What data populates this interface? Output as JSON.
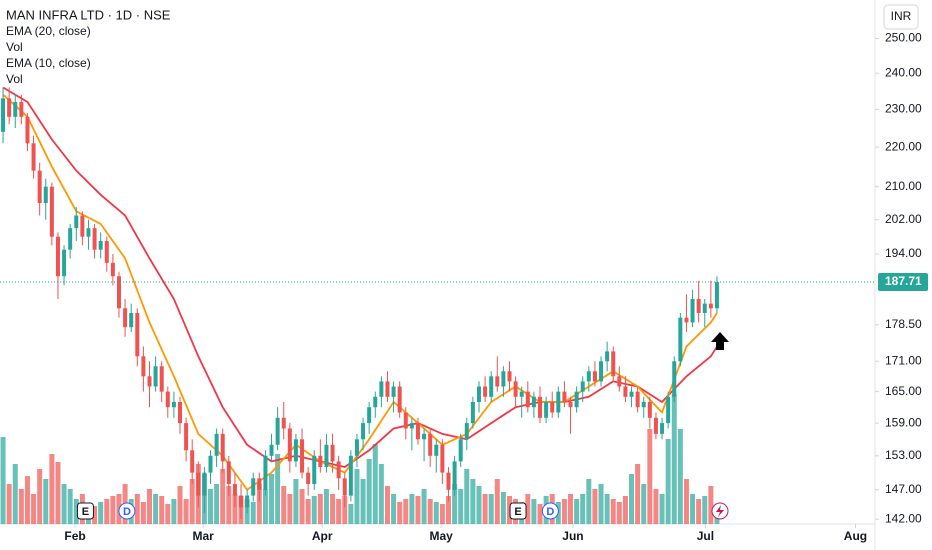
{
  "chart_data": {
    "type": "candlestick",
    "title": "MAN INFRA LTD · 1D · NSE",
    "legend": [
      "EMA (20, close)",
      "Vol",
      "EMA (10, close)",
      "Vol"
    ],
    "currency": "INR",
    "log_scale": true,
    "grid": false,
    "up_color": "#26a69a",
    "down_color": "#ef5350",
    "ylim": [
      141.2,
      261.6
    ],
    "yticks": [
      {
        "value": 250,
        "label": "250.00"
      },
      {
        "value": 240,
        "label": "240.00"
      },
      {
        "value": 230,
        "label": "230.00"
      },
      {
        "value": 220,
        "label": "220.00"
      },
      {
        "value": 210,
        "label": "210.00"
      },
      {
        "value": 202,
        "label": "202.00"
      },
      {
        "value": 194,
        "label": "194.00"
      },
      {
        "value": 178.5,
        "label": "178.50"
      },
      {
        "value": 171,
        "label": "171.00"
      },
      {
        "value": 165,
        "label": "165.00"
      },
      {
        "value": 159,
        "label": "159.00"
      },
      {
        "value": 153,
        "label": "153.00"
      },
      {
        "value": 147,
        "label": "147.00"
      },
      {
        "value": 142,
        "label": "142.00"
      }
    ],
    "xlim": [
      -0.5,
      142.9
    ],
    "xticks": [
      {
        "value": 11.8,
        "label": "Feb"
      },
      {
        "value": 32.8,
        "label": "Mar"
      },
      {
        "value": 52.3,
        "label": "Apr"
      },
      {
        "value": 71.8,
        "label": "May"
      },
      {
        "value": 93.4,
        "label": "Jun"
      },
      {
        "value": 115.1,
        "label": "Jul"
      },
      {
        "value": 139.7,
        "label": "Aug"
      }
    ],
    "last_price": 187.71,
    "ohlc": [
      [
        224,
        236,
        221,
        233
      ],
      [
        233,
        236,
        226,
        228
      ],
      [
        228,
        234,
        225,
        232
      ],
      [
        232,
        234,
        226,
        228
      ],
      [
        228,
        229,
        219,
        221
      ],
      [
        221,
        223,
        212,
        214
      ],
      [
        214,
        216,
        203,
        206
      ],
      [
        206,
        212,
        202,
        210
      ],
      [
        210,
        211,
        196,
        198
      ],
      [
        198,
        199,
        184,
        189
      ],
      [
        189,
        196,
        187,
        195
      ],
      [
        195,
        201,
        193,
        200
      ],
      [
        200,
        205,
        197,
        203
      ],
      [
        203,
        204,
        196,
        198
      ],
      [
        198,
        202,
        195,
        200
      ],
      [
        200,
        201,
        193,
        195
      ],
      [
        195,
        199,
        193,
        197
      ],
      [
        197,
        198,
        190,
        192
      ],
      [
        192,
        194,
        187,
        189
      ],
      [
        189,
        190,
        180,
        182
      ],
      [
        182,
        184,
        176,
        178
      ],
      [
        178,
        183,
        177,
        181
      ],
      [
        181,
        182,
        170,
        172
      ],
      [
        172,
        174,
        165,
        168
      ],
      [
        168,
        171,
        162,
        166
      ],
      [
        166,
        172,
        165,
        170
      ],
      [
        170,
        171,
        163,
        165
      ],
      [
        165,
        166,
        160,
        162
      ],
      [
        162,
        165,
        160,
        163
      ],
      [
        163,
        164,
        157,
        159
      ],
      [
        159,
        160,
        152,
        154
      ],
      [
        154,
        156,
        148,
        150
      ],
      [
        150,
        152,
        144,
        146
      ],
      [
        146,
        151,
        143,
        150
      ],
      [
        150,
        154,
        148,
        153
      ],
      [
        153,
        158,
        151,
        157
      ],
      [
        157,
        158,
        150,
        152
      ],
      [
        152,
        153,
        146,
        148
      ],
      [
        148,
        150,
        144,
        146
      ],
      [
        146,
        148,
        142,
        144
      ],
      [
        144,
        147,
        143,
        146
      ],
      [
        146,
        150,
        145,
        149
      ],
      [
        149,
        150,
        145,
        147
      ],
      [
        147,
        154,
        146,
        153
      ],
      [
        153,
        157,
        152,
        155
      ],
      [
        155,
        162,
        154,
        160
      ],
      [
        160,
        163,
        156,
        158
      ],
      [
        158,
        159,
        150,
        152
      ],
      [
        152,
        157,
        151,
        156
      ],
      [
        156,
        158,
        149,
        150
      ],
      [
        150,
        151,
        146,
        148
      ],
      [
        148,
        154,
        147,
        153
      ],
      [
        153,
        156,
        150,
        151
      ],
      [
        151,
        157,
        150,
        155
      ],
      [
        155,
        157,
        150,
        152
      ],
      [
        152,
        153,
        147,
        149
      ],
      [
        149,
        150,
        144,
        146
      ],
      [
        146,
        154,
        145,
        153
      ],
      [
        153,
        157,
        151,
        156
      ],
      [
        156,
        160,
        154,
        159
      ],
      [
        159,
        163,
        157,
        162
      ],
      [
        162,
        165,
        160,
        164
      ],
      [
        164,
        168,
        162,
        167
      ],
      [
        167,
        169,
        163,
        164
      ],
      [
        164,
        167,
        161,
        166
      ],
      [
        166,
        167,
        160,
        161
      ],
      [
        161,
        162,
        156,
        158
      ],
      [
        158,
        160,
        154,
        159
      ],
      [
        159,
        160,
        155,
        156
      ],
      [
        156,
        158,
        152,
        157
      ],
      [
        157,
        158,
        151,
        153
      ],
      [
        153,
        156,
        150,
        155
      ],
      [
        155,
        156,
        148,
        150
      ],
      [
        150,
        151,
        145,
        147
      ],
      [
        147,
        153,
        146,
        152
      ],
      [
        152,
        157,
        151,
        156
      ],
      [
        156,
        160,
        154,
        159
      ],
      [
        159,
        164,
        158,
        163
      ],
      [
        163,
        167,
        161,
        166
      ],
      [
        166,
        168,
        163,
        164
      ],
      [
        164,
        169,
        163,
        168
      ],
      [
        168,
        172,
        165,
        166
      ],
      [
        166,
        170,
        164,
        169
      ],
      [
        169,
        171,
        165,
        167
      ],
      [
        167,
        168,
        162,
        164
      ],
      [
        164,
        166,
        160,
        165
      ],
      [
        165,
        167,
        161,
        162
      ],
      [
        162,
        165,
        160,
        164
      ],
      [
        164,
        166,
        159,
        160
      ],
      [
        160,
        164,
        159,
        163
      ],
      [
        163,
        165,
        160,
        161
      ],
      [
        161,
        166,
        160,
        165
      ],
      [
        165,
        167,
        162,
        163
      ],
      [
        163,
        164,
        157,
        162
      ],
      [
        162,
        166,
        161,
        165
      ],
      [
        165,
        168,
        163,
        167
      ],
      [
        167,
        170,
        165,
        169
      ],
      [
        169,
        171,
        166,
        167
      ],
      [
        167,
        172,
        166,
        171
      ],
      [
        171,
        175,
        169,
        173
      ],
      [
        173,
        174,
        167,
        168
      ],
      [
        168,
        170,
        165,
        166
      ],
      [
        166,
        168,
        163,
        164
      ],
      [
        164,
        166,
        162,
        165
      ],
      [
        165,
        166,
        161,
        162
      ],
      [
        162,
        164,
        160,
        163
      ],
      [
        163,
        164,
        158,
        160
      ],
      [
        160,
        161,
        156,
        157
      ],
      [
        157,
        160,
        156,
        159
      ],
      [
        159,
        165,
        158,
        164
      ],
      [
        164,
        172,
        163,
        171
      ],
      [
        171,
        181,
        170,
        180
      ],
      [
        180,
        185,
        177,
        179
      ],
      [
        179,
        186,
        178,
        184
      ],
      [
        184,
        188,
        179,
        181
      ],
      [
        181,
        184,
        178,
        183
      ],
      [
        183,
        188,
        180,
        182
      ],
      [
        182,
        189,
        181,
        187.71
      ]
    ],
    "volume": [
      87,
      40,
      60,
      35,
      48,
      30,
      55,
      45,
      70,
      62,
      40,
      35,
      25,
      30,
      20,
      18,
      22,
      25,
      28,
      30,
      40,
      25,
      30,
      22,
      35,
      30,
      28,
      20,
      25,
      38,
      25,
      45,
      60,
      50,
      35,
      40,
      55,
      38,
      30,
      28,
      25,
      22,
      40,
      35,
      50,
      70,
      38,
      30,
      45,
      35,
      25,
      28,
      30,
      35,
      30,
      25,
      28,
      20,
      55,
      45,
      65,
      80,
      60,
      38,
      30,
      22,
      25,
      30,
      28,
      35,
      25,
      22,
      20,
      28,
      40,
      35,
      55,
      45,
      38,
      30,
      30,
      45,
      32,
      28,
      25,
      22,
      30,
      25,
      20,
      28,
      30,
      22,
      25,
      30,
      25,
      30,
      45,
      35,
      40,
      30,
      25,
      22,
      28,
      50,
      60,
      40,
      95,
      35,
      30,
      85,
      130,
      95,
      45,
      30,
      25,
      28,
      38,
      20
    ],
    "vlim": [
      0,
      130
    ],
    "series": [
      {
        "name": "EMA (20, close)",
        "color": "#f23645",
        "x": [
          0,
          4,
          8,
          12,
          16,
          20,
          24,
          28,
          32,
          36,
          40,
          44,
          48,
          52,
          56,
          60,
          64,
          68,
          72,
          76,
          80,
          84,
          88,
          92,
          96,
          100,
          104,
          108,
          112,
          116,
          117
        ],
        "values": [
          236,
          232,
          222,
          214,
          208,
          203,
          193,
          184,
          172,
          162,
          155,
          152,
          153,
          152,
          151,
          154,
          158,
          159,
          157,
          156,
          159,
          162,
          163,
          163,
          164,
          167,
          166,
          163,
          168,
          172,
          174
        ]
      },
      {
        "name": "EMA (10, close)",
        "color": "#ff9800",
        "x": [
          0,
          4,
          8,
          12,
          16,
          20,
          24,
          28,
          32,
          36,
          40,
          44,
          48,
          52,
          56,
          60,
          64,
          68,
          72,
          76,
          80,
          84,
          88,
          92,
          96,
          100,
          104,
          108,
          112,
          116,
          117
        ],
        "values": [
          234,
          228,
          215,
          204,
          201,
          193,
          179,
          168,
          157,
          153,
          147,
          150,
          155,
          152,
          150,
          156,
          163,
          159,
          155,
          157,
          163,
          166,
          163,
          163,
          166,
          169,
          166,
          161,
          174,
          179,
          181
        ]
      }
    ],
    "events": [
      {
        "x": 13.5,
        "label": "E"
      },
      {
        "x": 20.3,
        "label": "D"
      },
      {
        "x": 84.4,
        "label": "E"
      },
      {
        "x": 89.7,
        "label": "D"
      }
    ]
  }
}
